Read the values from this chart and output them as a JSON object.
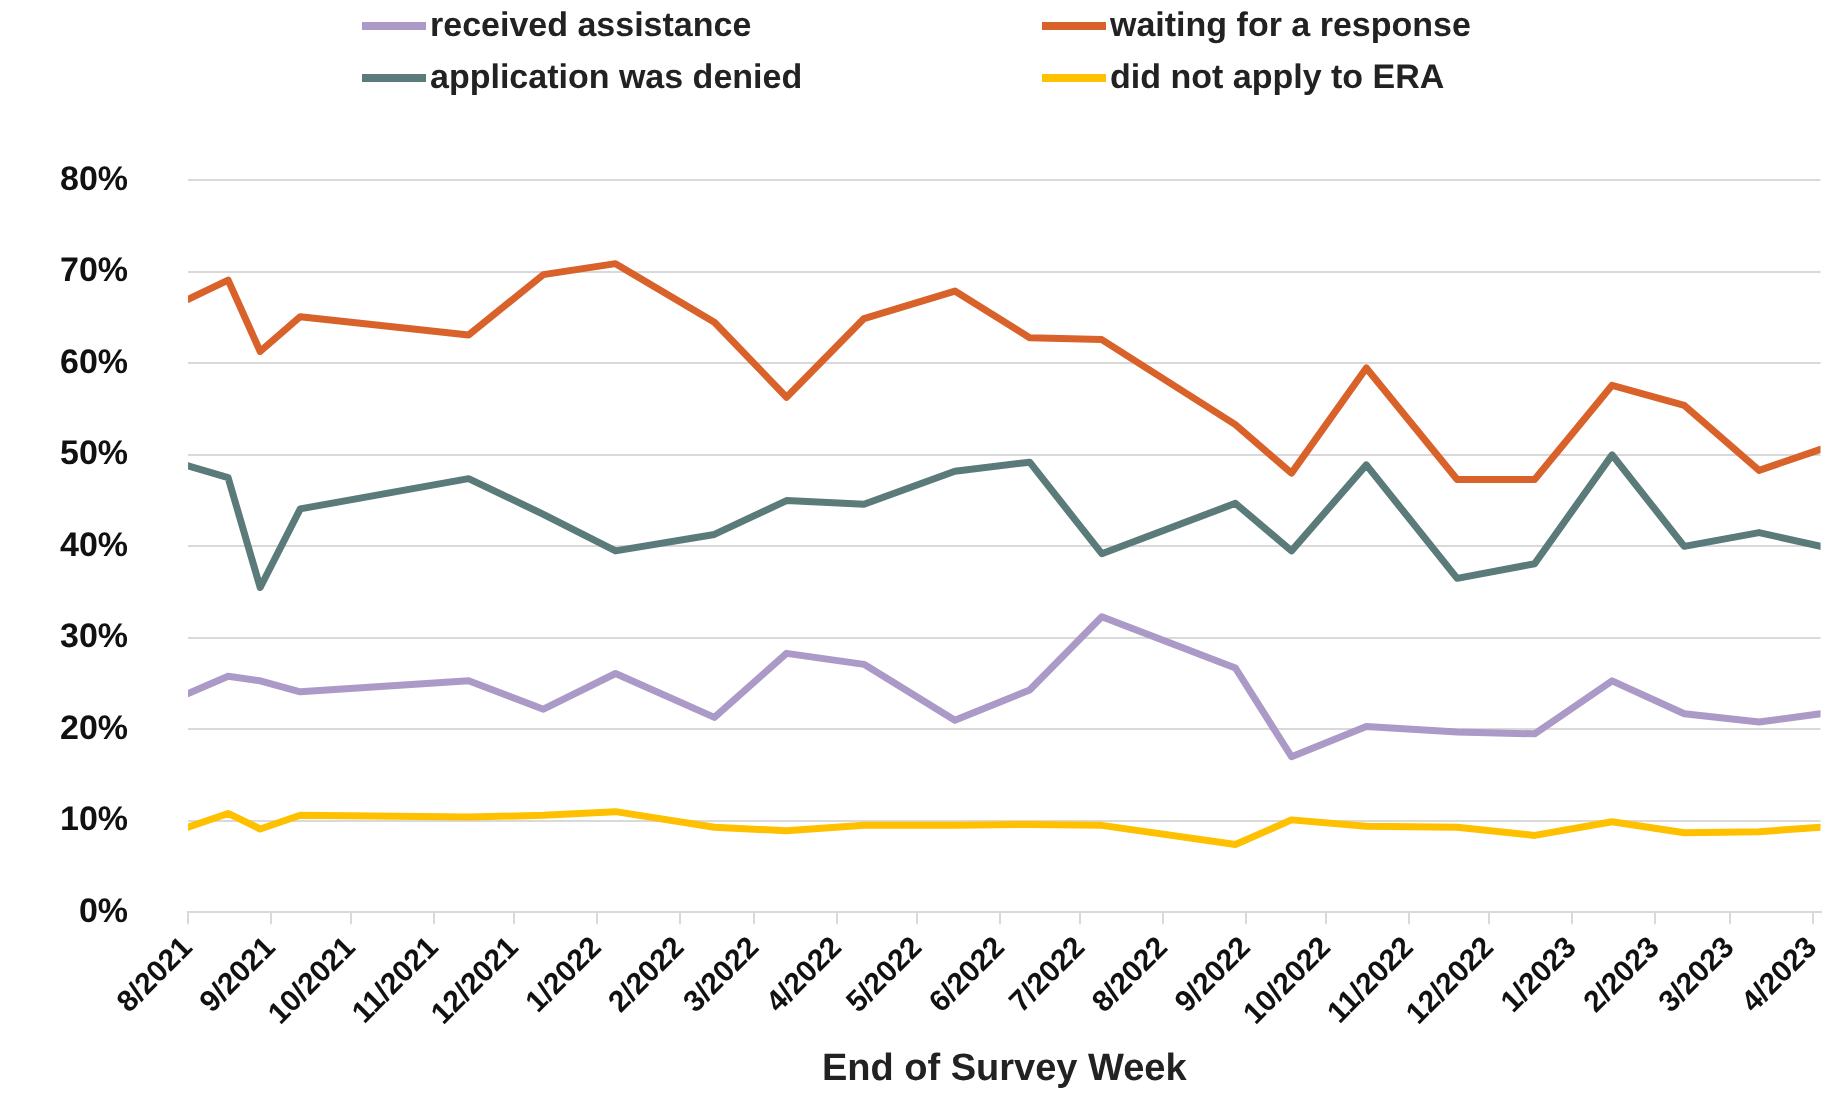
{
  "chart_data": {
    "type": "line",
    "xlabel": "End of Survey Week",
    "x": [
      "2021-08-01",
      "2021-08-16",
      "2021-08-28",
      "2021-09-12",
      "2021-11-14",
      "2021-12-12",
      "2022-01-08",
      "2022-02-14",
      "2022-03-13",
      "2022-04-11",
      "2022-05-15",
      "2022-06-12",
      "2022-07-09",
      "2022-08-28",
      "2022-09-18",
      "2022-10-16",
      "2022-11-19",
      "2022-12-18",
      "2023-01-16",
      "2023-02-12",
      "2023-03-12",
      "2023-04-04"
    ],
    "series": [
      {
        "name": "received assistance",
        "color": "#ab9ac8",
        "values": [
          23.9,
          25.8,
          25.3,
          24.1,
          25.3,
          22.2,
          26.1,
          21.3,
          28.3,
          27.1,
          21.0,
          24.3,
          32.3,
          26.7,
          17.0,
          20.3,
          19.7,
          19.5,
          25.3,
          21.7,
          20.8,
          21.7
        ]
      },
      {
        "name": "waiting for a response",
        "color": "#d9622b",
        "values": [
          67.0,
          69.1,
          61.3,
          65.1,
          63.1,
          69.7,
          70.9,
          64.5,
          56.3,
          64.9,
          67.9,
          62.8,
          62.6,
          53.3,
          48.0,
          59.5,
          47.3,
          47.3,
          57.6,
          55.4,
          48.3,
          50.6
        ]
      },
      {
        "name": "application was denied",
        "color": "#5b7a7a",
        "values": [
          48.8,
          47.5,
          35.5,
          44.1,
          47.4,
          43.5,
          39.5,
          41.3,
          45.0,
          44.6,
          48.2,
          49.2,
          39.2,
          44.7,
          39.5,
          48.9,
          36.5,
          38.1,
          50.0,
          40.0,
          41.5,
          40.0
        ]
      },
      {
        "name": "did not apply to ERA",
        "color": "#ffc000",
        "values": [
          9.3,
          10.8,
          9.1,
          10.6,
          10.4,
          10.6,
          11.0,
          9.3,
          8.9,
          9.5,
          9.5,
          9.6,
          9.5,
          7.4,
          10.1,
          9.4,
          9.3,
          8.4,
          9.9,
          8.7,
          8.8,
          9.3
        ]
      }
    ],
    "xlim": [
      "2021-08-01",
      "2023-04-04"
    ],
    "xticks": [
      {
        "value": "2021-08",
        "label": "8/2021"
      },
      {
        "value": "2021-09",
        "label": "9/2021"
      },
      {
        "value": "2021-10",
        "label": "10/2021"
      },
      {
        "value": "2021-11",
        "label": "11/2021"
      },
      {
        "value": "2021-12",
        "label": "12/2021"
      },
      {
        "value": "2022-01",
        "label": "1/2022"
      },
      {
        "value": "2022-02",
        "label": "2/2022"
      },
      {
        "value": "2022-03",
        "label": "3/2022"
      },
      {
        "value": "2022-04",
        "label": "4/2022"
      },
      {
        "value": "2022-05",
        "label": "5/2022"
      },
      {
        "value": "2022-06",
        "label": "6/2022"
      },
      {
        "value": "2022-07",
        "label": "7/2022"
      },
      {
        "value": "2022-08",
        "label": "8/2022"
      },
      {
        "value": "2022-09",
        "label": "9/2022"
      },
      {
        "value": "2022-10",
        "label": "10/2022"
      },
      {
        "value": "2022-11",
        "label": "11/2022"
      },
      {
        "value": "2022-12",
        "label": "12/2022"
      },
      {
        "value": "2023-01",
        "label": "1/2023"
      },
      {
        "value": "2023-02",
        "label": "2/2023"
      },
      {
        "value": "2023-03",
        "label": "3/2023"
      },
      {
        "value": "2023-04",
        "label": "4/2023"
      }
    ],
    "ylim": [
      0,
      80
    ],
    "yticks": [
      {
        "value": 0,
        "label": "0%"
      },
      {
        "value": 10,
        "label": "10%"
      },
      {
        "value": 20,
        "label": "20%"
      },
      {
        "value": 30,
        "label": "30%"
      },
      {
        "value": 40,
        "label": "40%"
      },
      {
        "value": 50,
        "label": "50%"
      },
      {
        "value": 60,
        "label": "60%"
      },
      {
        "value": 70,
        "label": "70%"
      },
      {
        "value": 80,
        "label": "80%"
      }
    ],
    "grid": "y",
    "legend": "top",
    "marker": "none",
    "line_style": "solid"
  }
}
